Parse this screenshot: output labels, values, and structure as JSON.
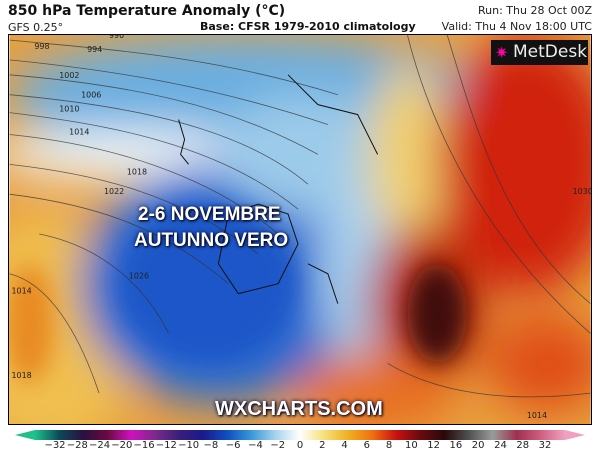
{
  "header": {
    "title": "850 hPa Temperature Anomaly (°C)",
    "model": "GFS 0.25°",
    "base": "Base: CFSR 1979-2010 climatology",
    "run": "Run: Thu 28 Oct 00Z",
    "valid": "Valid: Thu 4 Nov 18:00 UTC"
  },
  "logo": {
    "text": "MetDesk",
    "icon": "pinwheel-star-icon"
  },
  "overlay": {
    "line1": "2-6 NOVEMBRE",
    "line2": "AUTUNNO VERO",
    "watermark": "WXCHARTS.COM"
  },
  "isobars": [
    "998",
    "994",
    "990",
    "1002",
    "1006",
    "1010",
    "1014",
    "1018",
    "1022",
    "1026",
    "1014",
    "1018",
    "1030",
    "1014"
  ],
  "colorbar": {
    "ticks": [
      "−32",
      "−28",
      "−24",
      "−20",
      "−16",
      "−12",
      "−10",
      "−8",
      "−6",
      "−4",
      "−2",
      "0",
      "2",
      "4",
      "6",
      "8",
      "10",
      "12",
      "16",
      "20",
      "24",
      "28",
      "32"
    ],
    "colors": [
      "#1fc08a",
      "#0b4a5a",
      "#2a1040",
      "#6a0a40",
      "#d010c0",
      "#7a2a8a",
      "#3a1e7a",
      "#1a1a90",
      "#1050c0",
      "#3a9ad8",
      "#a8d4ee",
      "#ffffff",
      "#f6e07a",
      "#f0b020",
      "#f07010",
      "#c81010",
      "#6a0a10",
      "#2a0808",
      "#505050",
      "#9a9a9a",
      "#a03050",
      "#d06080",
      "#f0a0c0"
    ]
  }
}
